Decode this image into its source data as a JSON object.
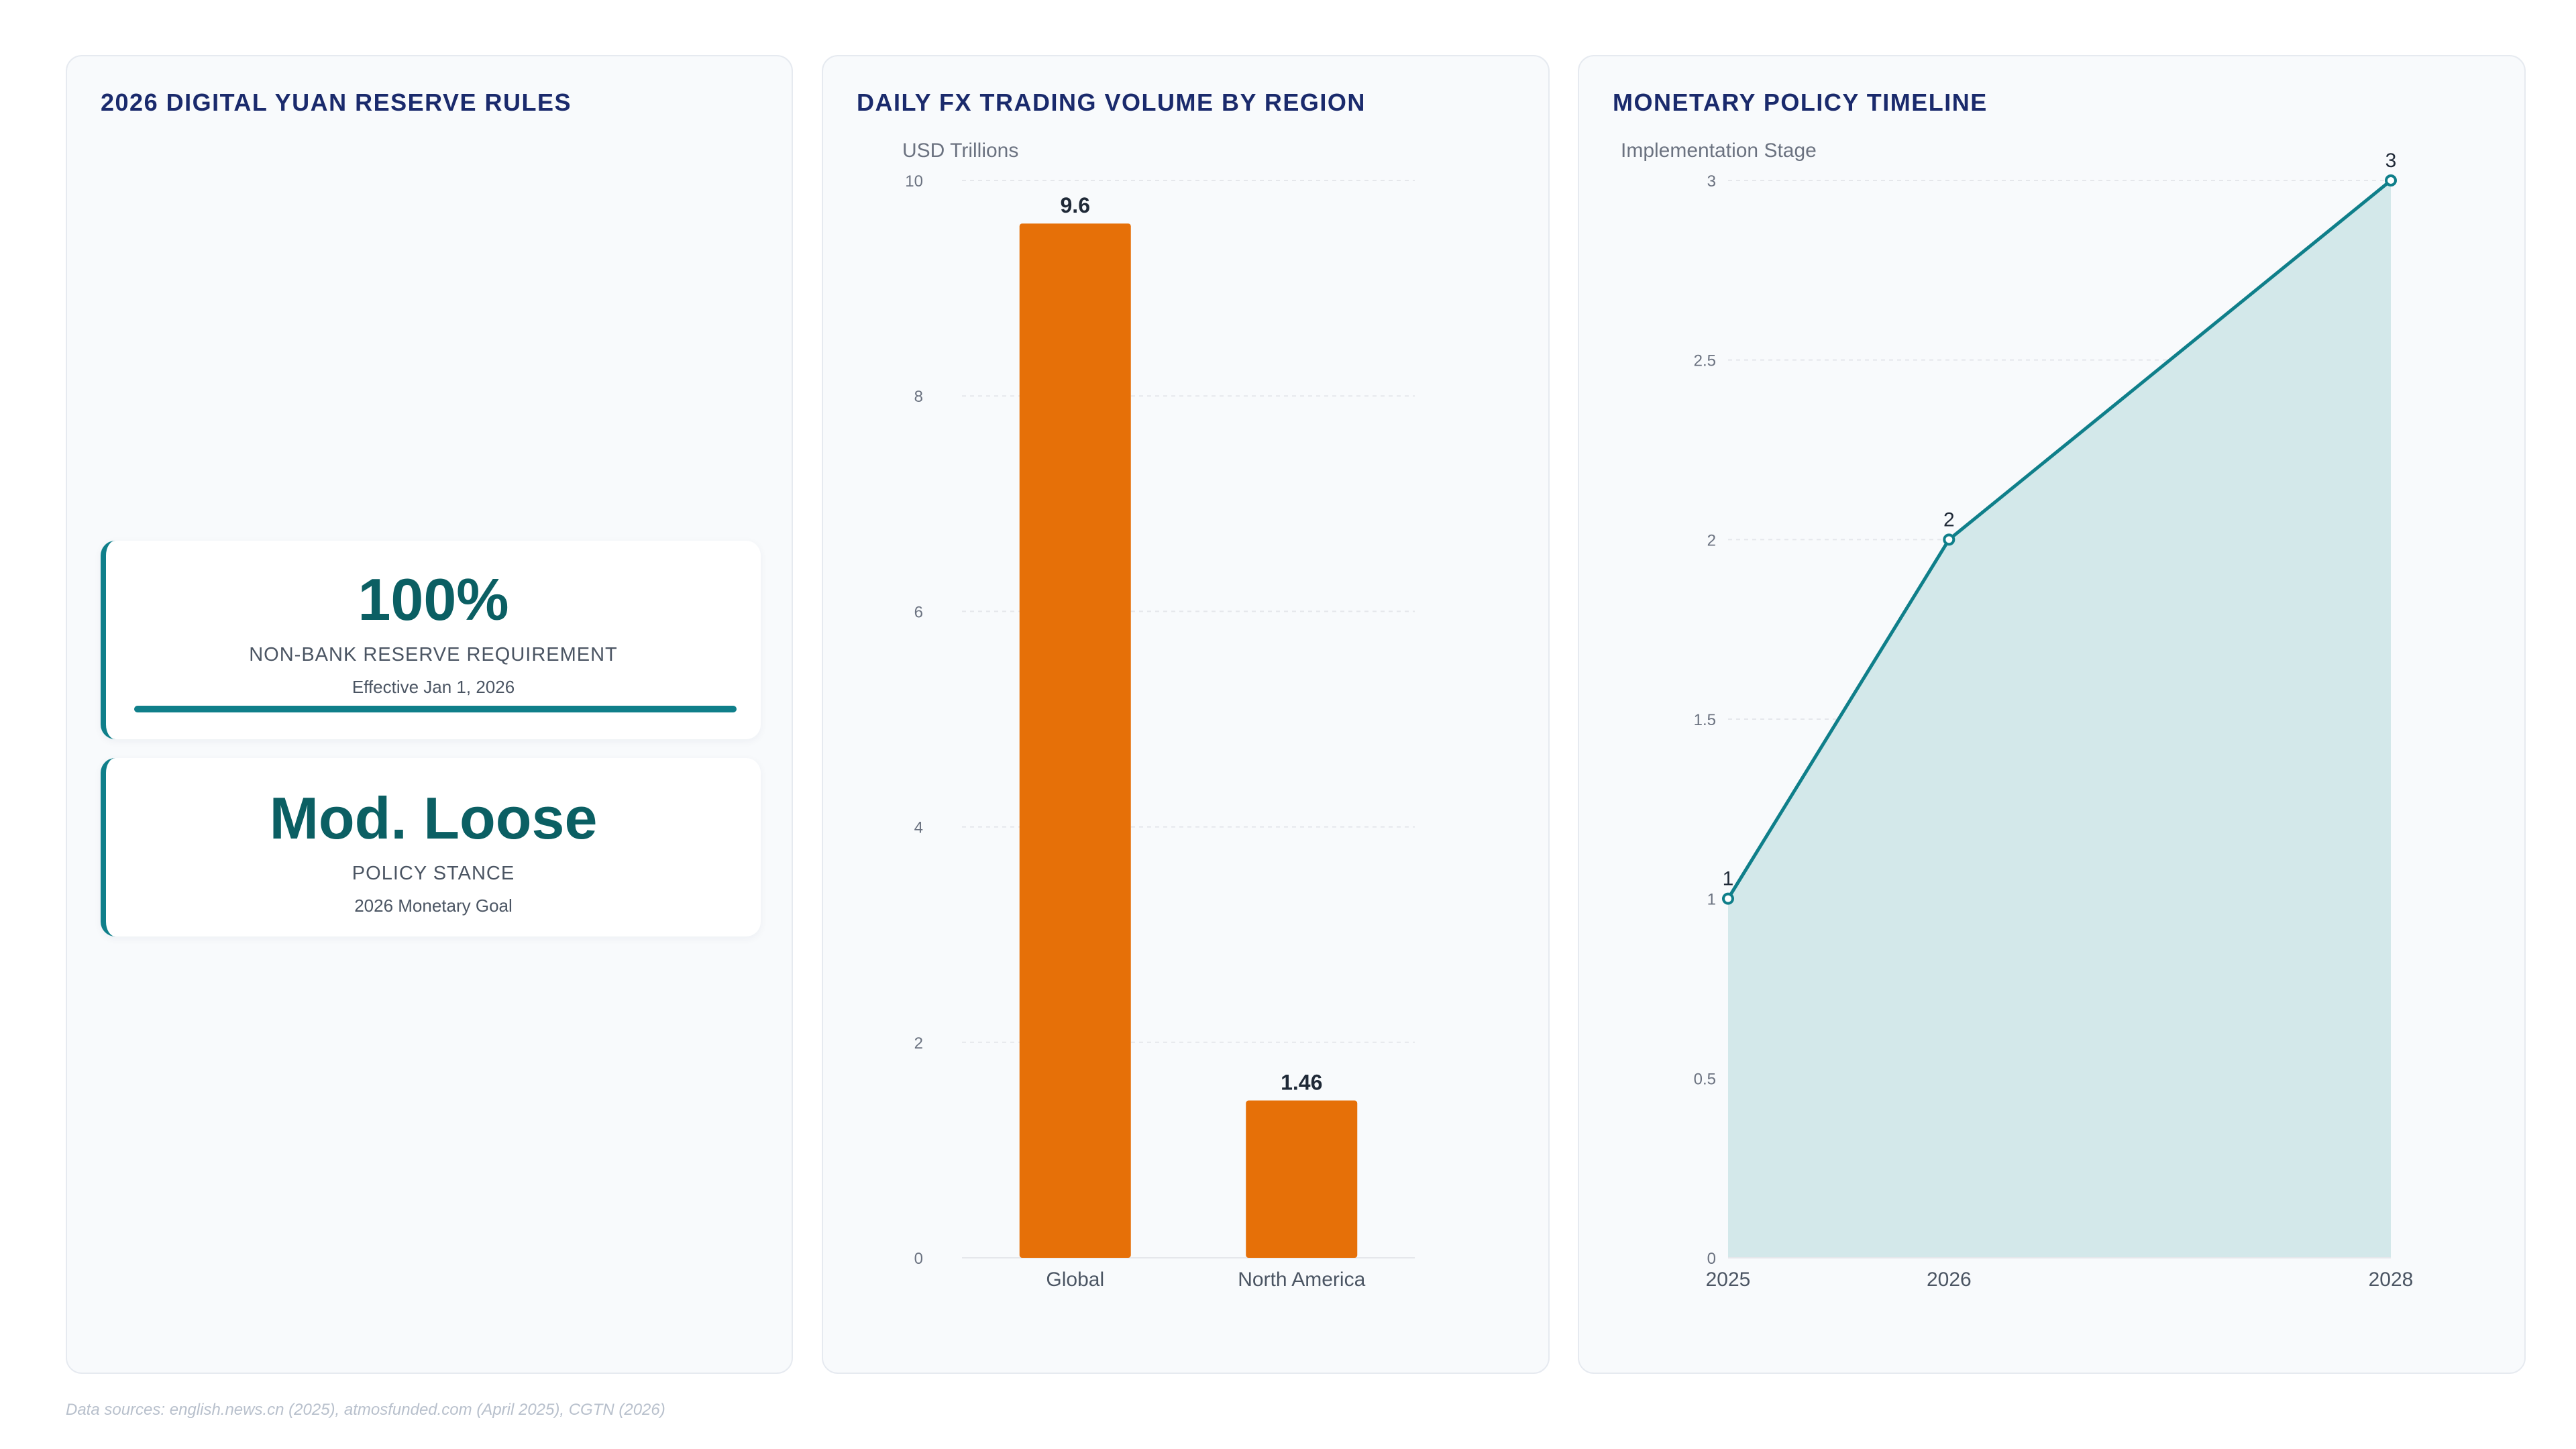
{
  "panels": {
    "reserve": {
      "title": "2026 DIGITAL YUAN RESERVE RULES",
      "kpis": [
        {
          "value": "100%",
          "label": "NON-BANK RESERVE REQUIREMENT",
          "sub": "Effective Jan 1, 2026",
          "progress_fraction": 1.0
        },
        {
          "value": "Mod. Loose",
          "label": "POLICY STANCE",
          "sub": "2026 Monetary Goal"
        }
      ]
    },
    "volume": {
      "title": "DAILY FX TRADING VOLUME BY REGION"
    },
    "timeline": {
      "title": "MONETARY POLICY TIMELINE"
    }
  },
  "chart_data": [
    {
      "type": "bar",
      "title": "DAILY FX TRADING VOLUME BY REGION",
      "ylabel": "USD Trillions",
      "categories": [
        "Global",
        "North America"
      ],
      "values": [
        9.6,
        1.46
      ],
      "value_labels": [
        "9.6",
        "1.46"
      ],
      "ylim": [
        0,
        10
      ],
      "yticks": [
        0,
        2,
        4,
        6,
        8,
        10
      ],
      "grid": true,
      "color": "#e67008"
    },
    {
      "type": "area",
      "title": "MONETARY POLICY TIMELINE",
      "ylabel": "Implementation Stage",
      "x": [
        "2025",
        "2026",
        "2028"
      ],
      "values": [
        1,
        2,
        3
      ],
      "value_labels": [
        "1",
        "2",
        "3"
      ],
      "ylim": [
        0,
        3
      ],
      "yticks": [
        0,
        0.5,
        1,
        1.5,
        2,
        2.5,
        3
      ],
      "grid": true,
      "line_color": "#0f7f8a",
      "fill_color": "#d3e8ea"
    }
  ],
  "footer": "Data sources: english.news.cn (2025), atmosfunded.com (April 2025), CGTN (2026)"
}
